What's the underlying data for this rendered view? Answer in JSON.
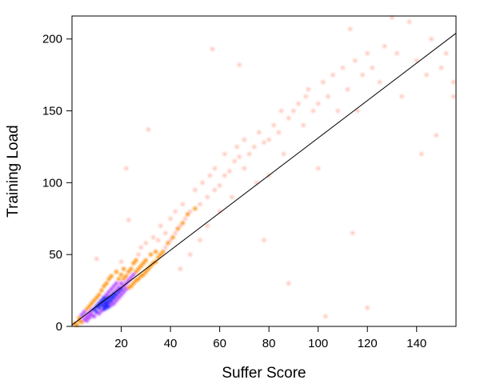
{
  "chart_data": {
    "type": "scatter",
    "title": "",
    "xlabel": "Suffer Score",
    "ylabel": "Training Load",
    "xlim": [
      0,
      156
    ],
    "ylim": [
      0,
      216
    ],
    "xticks": [
      20,
      40,
      60,
      80,
      100,
      120,
      140
    ],
    "yticks": [
      0,
      50,
      100,
      150,
      200
    ],
    "grid": false,
    "fit_line": {
      "x": [
        0,
        156
      ],
      "y": [
        1,
        204
      ]
    },
    "colors": {
      "low": "#ffb0a0",
      "mid": "#ff8c00",
      "high": "#b040ff",
      "peak": "#2020ff",
      "line": "#000000"
    },
    "points": [
      [
        1,
        2
      ],
      [
        2,
        1
      ],
      [
        3,
        4
      ],
      [
        3,
        6
      ],
      [
        4,
        3
      ],
      [
        4,
        8
      ],
      [
        5,
        5
      ],
      [
        5,
        10
      ],
      [
        6,
        4
      ],
      [
        6,
        7
      ],
      [
        6,
        12
      ],
      [
        7,
        6
      ],
      [
        7,
        9
      ],
      [
        7,
        14
      ],
      [
        8,
        8
      ],
      [
        8,
        11
      ],
      [
        8,
        16
      ],
      [
        9,
        7
      ],
      [
        9,
        12
      ],
      [
        9,
        18
      ],
      [
        10,
        10
      ],
      [
        10,
        14
      ],
      [
        10,
        20
      ],
      [
        10,
        47
      ],
      [
        11,
        9
      ],
      [
        11,
        13
      ],
      [
        11,
        16
      ],
      [
        11,
        22
      ],
      [
        12,
        11
      ],
      [
        12,
        15
      ],
      [
        12,
        18
      ],
      [
        12,
        25
      ],
      [
        13,
        12
      ],
      [
        13,
        14
      ],
      [
        13,
        17
      ],
      [
        13,
        20
      ],
      [
        13,
        28
      ],
      [
        14,
        13
      ],
      [
        14,
        15
      ],
      [
        14,
        16
      ],
      [
        14,
        19
      ],
      [
        14,
        22
      ],
      [
        14,
        30
      ],
      [
        15,
        14
      ],
      [
        15,
        17
      ],
      [
        15,
        20
      ],
      [
        15,
        24
      ],
      [
        15,
        33
      ],
      [
        16,
        15
      ],
      [
        16,
        18
      ],
      [
        16,
        21
      ],
      [
        16,
        26
      ],
      [
        16,
        35
      ],
      [
        17,
        16
      ],
      [
        17,
        20
      ],
      [
        17,
        23
      ],
      [
        17,
        28
      ],
      [
        18,
        18
      ],
      [
        18,
        22
      ],
      [
        18,
        25
      ],
      [
        18,
        30
      ],
      [
        18,
        38
      ],
      [
        19,
        20
      ],
      [
        19,
        24
      ],
      [
        19,
        27
      ],
      [
        19,
        33
      ],
      [
        20,
        22
      ],
      [
        20,
        26
      ],
      [
        20,
        30
      ],
      [
        20,
        36
      ],
      [
        20,
        45
      ],
      [
        21,
        24
      ],
      [
        21,
        28
      ],
      [
        21,
        33
      ],
      [
        21,
        40
      ],
      [
        22,
        26
      ],
      [
        22,
        30
      ],
      [
        22,
        35
      ],
      [
        22,
        110
      ],
      [
        23,
        27
      ],
      [
        23,
        32
      ],
      [
        23,
        38
      ],
      [
        23,
        74
      ],
      [
        24,
        28
      ],
      [
        24,
        34
      ],
      [
        24,
        40
      ],
      [
        25,
        30
      ],
      [
        25,
        36
      ],
      [
        25,
        44
      ],
      [
        26,
        32
      ],
      [
        26,
        38
      ],
      [
        26,
        46
      ],
      [
        27,
        33
      ],
      [
        27,
        40
      ],
      [
        27,
        50
      ],
      [
        28,
        35
      ],
      [
        28,
        42
      ],
      [
        28,
        55
      ],
      [
        29,
        36
      ],
      [
        29,
        44
      ],
      [
        30,
        38
      ],
      [
        30,
        46
      ],
      [
        30,
        58
      ],
      [
        31,
        40
      ],
      [
        31,
        137
      ],
      [
        32,
        42
      ],
      [
        32,
        50
      ],
      [
        33,
        44
      ],
      [
        33,
        62
      ],
      [
        34,
        45
      ],
      [
        34,
        52
      ],
      [
        35,
        48
      ],
      [
        35,
        60
      ],
      [
        36,
        50
      ],
      [
        36,
        70
      ],
      [
        37,
        52
      ],
      [
        38,
        55
      ],
      [
        38,
        65
      ],
      [
        39,
        58
      ],
      [
        40,
        60
      ],
      [
        40,
        75
      ],
      [
        41,
        62
      ],
      [
        42,
        65
      ],
      [
        42,
        80
      ],
      [
        43,
        68
      ],
      [
        44,
        70
      ],
      [
        44,
        40
      ],
      [
        45,
        72
      ],
      [
        45,
        85
      ],
      [
        46,
        75
      ],
      [
        47,
        78
      ],
      [
        48,
        80
      ],
      [
        48,
        50
      ],
      [
        50,
        82
      ],
      [
        50,
        95
      ],
      [
        52,
        85
      ],
      [
        52,
        60
      ],
      [
        53,
        100
      ],
      [
        55,
        90
      ],
      [
        55,
        70
      ],
      [
        56,
        105
      ],
      [
        57,
        193
      ],
      [
        58,
        95
      ],
      [
        58,
        110
      ],
      [
        60,
        98
      ],
      [
        60,
        80
      ],
      [
        62,
        105
      ],
      [
        62,
        120
      ],
      [
        64,
        108
      ],
      [
        65,
        90
      ],
      [
        66,
        115
      ],
      [
        67,
        125
      ],
      [
        68,
        182
      ],
      [
        68,
        118
      ],
      [
        70,
        110
      ],
      [
        70,
        130
      ],
      [
        72,
        120
      ],
      [
        74,
        125
      ],
      [
        75,
        100
      ],
      [
        76,
        135
      ],
      [
        78,
        128
      ],
      [
        78,
        60
      ],
      [
        80,
        130
      ],
      [
        80,
        105
      ],
      [
        82,
        140
      ],
      [
        84,
        135
      ],
      [
        85,
        150
      ],
      [
        86,
        120
      ],
      [
        88,
        145
      ],
      [
        88,
        30
      ],
      [
        90,
        150
      ],
      [
        92,
        155
      ],
      [
        94,
        140
      ],
      [
        95,
        160
      ],
      [
        96,
        165
      ],
      [
        98,
        150
      ],
      [
        100,
        155
      ],
      [
        100,
        110
      ],
      [
        102,
        170
      ],
      [
        103,
        7
      ],
      [
        104,
        160
      ],
      [
        106,
        175
      ],
      [
        108,
        150
      ],
      [
        110,
        180
      ],
      [
        112,
        165
      ],
      [
        113,
        207
      ],
      [
        114,
        65
      ],
      [
        115,
        185
      ],
      [
        116,
        150
      ],
      [
        118,
        175
      ],
      [
        120,
        13
      ],
      [
        120,
        190
      ],
      [
        122,
        180
      ],
      [
        125,
        170
      ],
      [
        127,
        195
      ],
      [
        130,
        215
      ],
      [
        132,
        190
      ],
      [
        134,
        160
      ],
      [
        137,
        212
      ],
      [
        140,
        185
      ],
      [
        142,
        120
      ],
      [
        144,
        175
      ],
      [
        146,
        200
      ],
      [
        148,
        133
      ],
      [
        150,
        180
      ],
      [
        152,
        190
      ],
      [
        155,
        170
      ],
      [
        155,
        160
      ]
    ]
  }
}
